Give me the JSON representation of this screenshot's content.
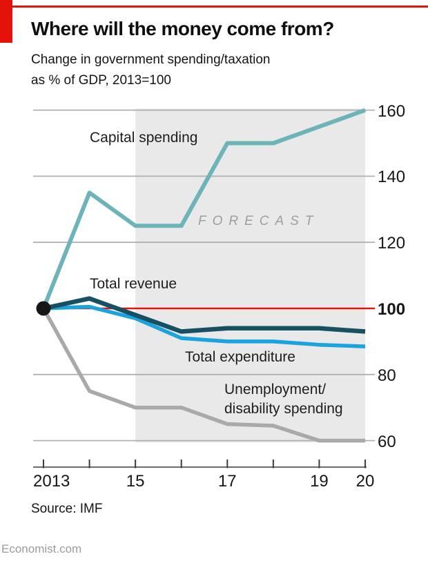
{
  "header": {
    "title": "Where will the money come from?",
    "subtitle": "Change in government spending/taxation\nas % of GDP, 2013=100"
  },
  "labels": {
    "capital": "Capital spending",
    "revenue": "Total revenue",
    "expenditure": "Total expenditure",
    "unemployment": "Unemployment/\ndisability spending",
    "forecast": "FORECAST"
  },
  "footer": {
    "source": "Source: IMF",
    "site": "Economist.com"
  },
  "colors": {
    "accent_red": "#e3120b",
    "capital": "#6db4b9",
    "revenue": "#174f63",
    "expenditure": "#1aa3dd",
    "unemployment": "#a9a9a9",
    "forecast_band": "#e9e9e9",
    "gridline": "#b0b0b0",
    "axis": "#3c3c3c",
    "start_dot": "#161616"
  },
  "chart_data": {
    "type": "line",
    "title": "Where will the money come from?",
    "subtitle": "Change in government spending/taxation as % of GDP, 2013=100",
    "x": [
      2013,
      2014,
      2015,
      2016,
      2017,
      2018,
      2019,
      2020
    ],
    "series": [
      {
        "name": "Capital spending",
        "color": "#6db4b9",
        "stroke_width": 6,
        "values": [
          100,
          135,
          125,
          125,
          150,
          150,
          155,
          160
        ]
      },
      {
        "name": "Total revenue",
        "color": "#174f63",
        "stroke_width": 6.5,
        "values": [
          100,
          103,
          98,
          93,
          94,
          94,
          94,
          93
        ]
      },
      {
        "name": "Total expenditure",
        "color": "#1aa3dd",
        "stroke_width": 5.5,
        "values": [
          100,
          100.5,
          97,
          91,
          90,
          90,
          89,
          88.5
        ]
      },
      {
        "name": "Unemployment/disability spending",
        "color": "#a9a9a9",
        "stroke_width": 5.5,
        "values": [
          100,
          75,
          70,
          70,
          65,
          64.5,
          60,
          60
        ]
      }
    ],
    "baseline": {
      "value": 100,
      "color": "#e3120b"
    },
    "start_dot": {
      "year": 2013,
      "value": 100,
      "color": "#161616"
    },
    "forecast_region": {
      "from": 2015,
      "to": 2020,
      "label": "FORECAST",
      "fill": "#e9e9e9"
    },
    "ylim": [
      60,
      160
    ],
    "grid": true,
    "legend_position": "inline-annotations",
    "y_ticks": [
      {
        "label": "160",
        "value": 160,
        "bold": false
      },
      {
        "label": "140",
        "value": 140,
        "bold": false
      },
      {
        "label": "120",
        "value": 120,
        "bold": false
      },
      {
        "label": "100",
        "value": 100,
        "bold": true
      },
      {
        "label": "80",
        "value": 80,
        "bold": false
      },
      {
        "label": "60",
        "value": 60,
        "bold": false
      }
    ],
    "x_ticks": [
      {
        "year": 2013,
        "label": "2013"
      },
      {
        "year": 2014,
        "label": ""
      },
      {
        "year": 2015,
        "label": "15"
      },
      {
        "year": 2016,
        "label": ""
      },
      {
        "year": 2017,
        "label": "17"
      },
      {
        "year": 2018,
        "label": ""
      },
      {
        "year": 2019,
        "label": "19"
      },
      {
        "year": 2020,
        "label": "20"
      }
    ]
  }
}
